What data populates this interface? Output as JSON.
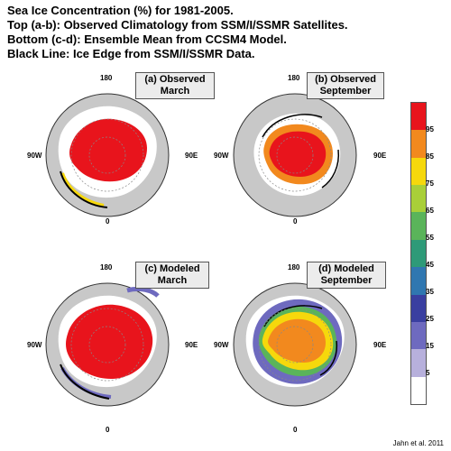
{
  "header": {
    "line1": "Sea Ice Concentration (%) for 1981-2005.",
    "line2": "Top (a-b): Observed Climatology from SSM/I/SSMR Satellites.",
    "line3": "Bottom (c-d): Ensemble Mean from CCSM4 Model.",
    "line4": "Black Line: Ice Edge from SSM/I/SSMR Data."
  },
  "panels": [
    {
      "line1": "(a) Observed",
      "line2": "March"
    },
    {
      "line1": "(b) Observed",
      "line2": "September"
    },
    {
      "line1": "(c) Modeled",
      "line2": "March"
    },
    {
      "line1": "(d) Modeled",
      "line2": "September"
    }
  ],
  "map_labels": {
    "top": "180",
    "bottom": "0",
    "left": "90W",
    "right": "90E"
  },
  "colorbar": {
    "ticks": [
      "95",
      "85",
      "75",
      "65",
      "55",
      "45",
      "35",
      "25",
      "15",
      "5"
    ],
    "colors": [
      "#e8141c",
      "#f2891e",
      "#f6d80c",
      "#a9cf38",
      "#5ab45a",
      "#2e9a78",
      "#3077b0",
      "#3a3fa0",
      "#6e6abf",
      "#b7b0dc",
      "#ffffff"
    ]
  },
  "colors": {
    "land": "#c8c8c8",
    "ice": "#e8141c",
    "ocean": "#ffffff"
  },
  "credit": "Jahn et al. 2011"
}
